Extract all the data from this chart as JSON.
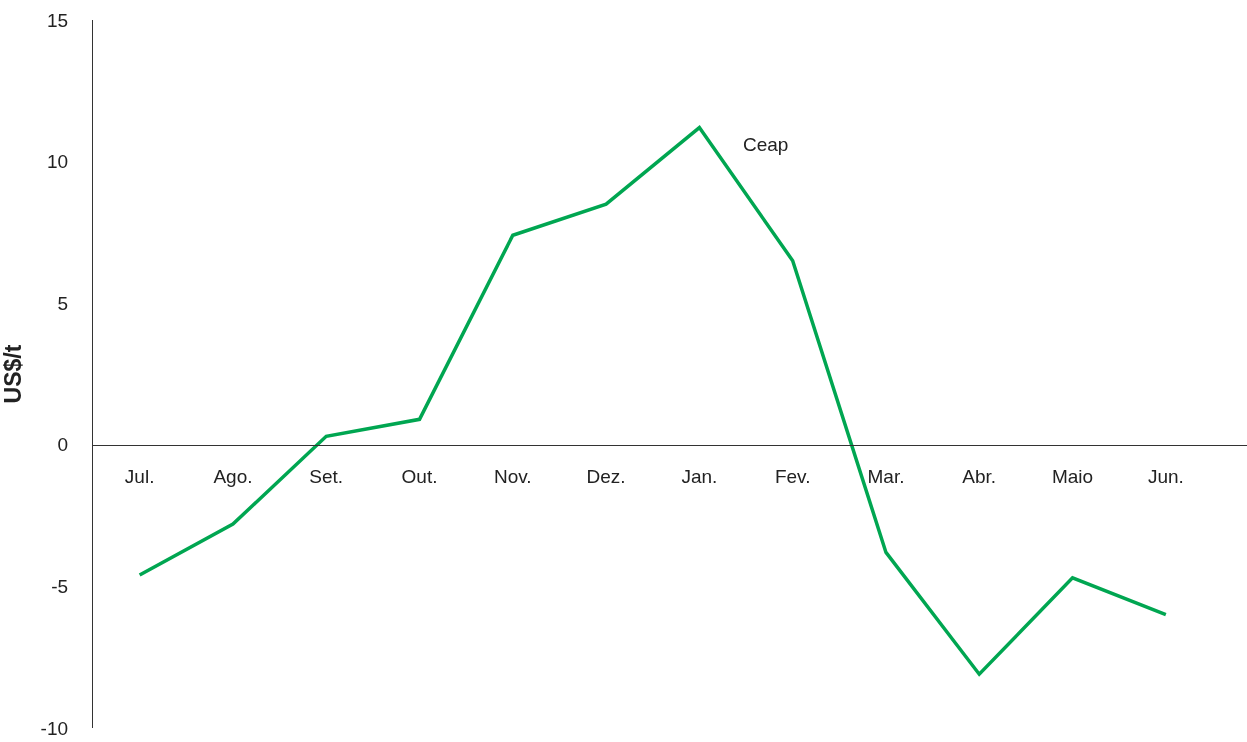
{
  "chart_data": {
    "type": "line",
    "ylabel": "US$/t",
    "categories": [
      "Jul.",
      "Ago.",
      "Set.",
      "Out.",
      "Nov.",
      "Dez.",
      "Jan.",
      "Fev.",
      "Mar.",
      "Abr.",
      "Maio",
      "Jun."
    ],
    "series": [
      {
        "name": "Ceap",
        "color": "#00a651",
        "values": [
          -4.6,
          -2.8,
          0.3,
          0.9,
          7.4,
          8.5,
          11.2,
          6.5,
          -3.8,
          -8.1,
          -4.7,
          -6.0
        ]
      }
    ],
    "ylim": [
      -10,
      15
    ],
    "yticks": [
      -10,
      -5,
      0,
      5,
      10,
      15
    ],
    "legend": false,
    "marker": "none",
    "line_style": "solid"
  }
}
